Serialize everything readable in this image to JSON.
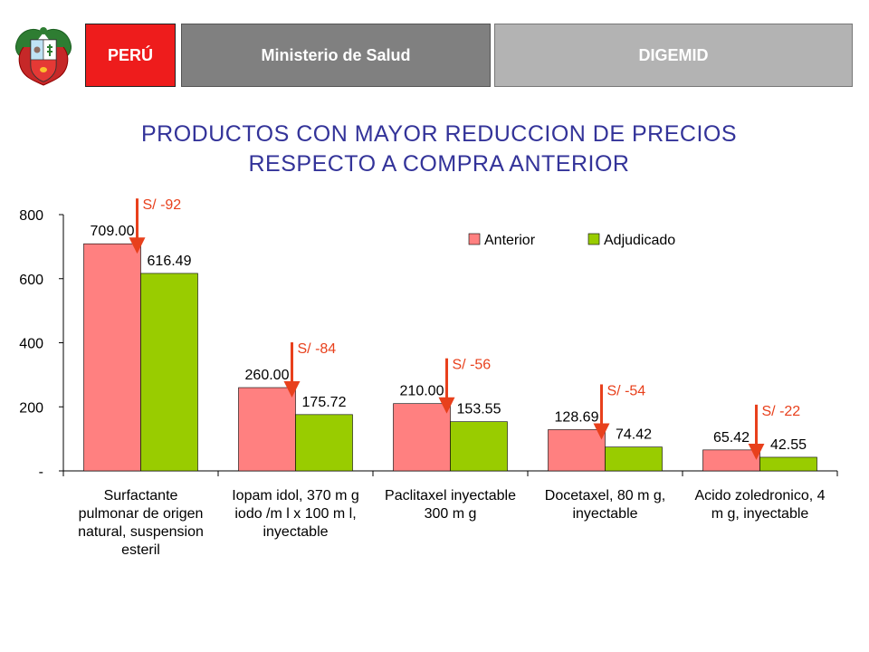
{
  "header": {
    "peru": "PERÚ",
    "ministerio": "Ministerio de Salud",
    "digemid": "DIGEMID",
    "colors": {
      "peru": "#ee1c1c",
      "ministerio": "#808080",
      "digemid": "#b3b3b3"
    }
  },
  "crest": {
    "icon": "peru-coat-of-arms-icon"
  },
  "title_lines": [
    "PRODUCTOS CON MAYOR REDUCCION DE PRECIOS",
    "RESPECTO A COMPRA ANTERIOR"
  ],
  "chart_data": {
    "type": "bar",
    "title": "PRODUCTOS CON MAYOR REDUCCION DE PRECIOS RESPECTO A COMPRA ANTERIOR",
    "categories": [
      "Surfactante pulmonar de origen natural, suspension esteril",
      "Iopamidol, 370 mg iodo /ml x 100 ml, inyectable",
      "Paclitaxel inyectable 300 mg",
      "Docetaxel, 80 mg, inyectable",
      "Acido zoledronico, 4 mg, inyectable"
    ],
    "category_lines": [
      [
        "Surfactante",
        "pulmonar de origen",
        "natural, suspension",
        "esteril"
      ],
      [
        "Iopam idol, 370 m g",
        "iodo /m l x 100 m l,",
        "inyectable"
      ],
      [
        "Paclitaxel inyectable",
        "300 m g"
      ],
      [
        "Docetaxel, 80 m g,",
        "inyectable"
      ],
      [
        "Acido zoledronico, 4",
        "m g, inyectable"
      ]
    ],
    "series": [
      {
        "name": "Anterior",
        "color": "#ff8080",
        "values": [
          709.0,
          260.0,
          210.0,
          128.69,
          65.42
        ],
        "labels": [
          "709.00",
          "260.00",
          "210.00",
          "128.69",
          "65.42"
        ]
      },
      {
        "name": "Adjudicado",
        "color": "#99cc00",
        "values": [
          616.49,
          175.72,
          153.55,
          74.42,
          42.55
        ],
        "labels": [
          "616.49",
          "175.72",
          "153.55",
          "74.42",
          "42.55"
        ]
      }
    ],
    "reductions": [
      "S/ -92",
      "S/ -84",
      "S/ -56",
      "S/ -54",
      "S/ -22"
    ],
    "arrow_color": "#e8401c",
    "ylim": [
      0,
      800
    ],
    "yticks": [
      0,
      200,
      400,
      600,
      800
    ],
    "ytick_labels": [
      "-",
      "200",
      "400",
      "600",
      "800"
    ],
    "legend_position": "top-right",
    "grid": false
  }
}
